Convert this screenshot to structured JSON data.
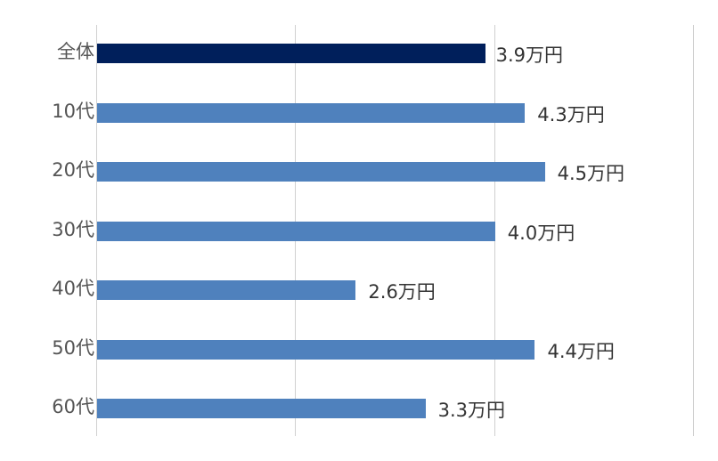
{
  "chart_data": {
    "type": "bar",
    "orientation": "horizontal",
    "title": "",
    "xlabel": "",
    "ylabel": "",
    "xlim": [
      0,
      6
    ],
    "gridlines_x": [
      0,
      2,
      4,
      6
    ],
    "grid": true,
    "legend": null,
    "categories": [
      "全体",
      "10代",
      "20代",
      "30代",
      "40代",
      "50代",
      "60代"
    ],
    "values": [
      3.9,
      4.3,
      4.5,
      4.0,
      2.6,
      4.4,
      3.3
    ],
    "data_labels": [
      "3.9万円",
      "4.3万円",
      "4.5万円",
      "4.0万円",
      "2.6万円",
      "4.4万円",
      "3.3万円"
    ],
    "unit": "万円",
    "colors": {
      "highlight": "#001f5b",
      "default": "#4f81bd"
    }
  }
}
